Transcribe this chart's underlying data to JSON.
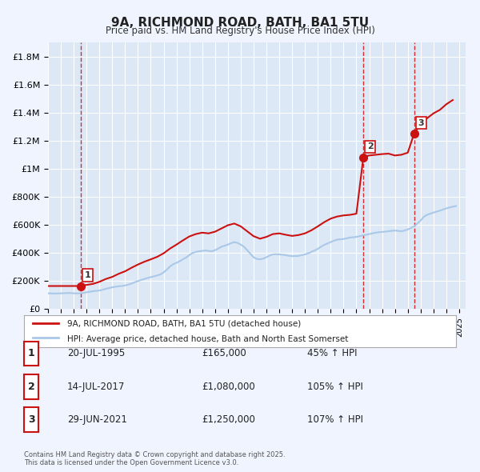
{
  "title": "9A, RICHMOND ROAD, BATH, BA1 5TU",
  "subtitle": "Price paid vs. HM Land Registry's House Price Index (HPI)",
  "bg_color": "#f0f4ff",
  "plot_bg_color": "#dce8f5",
  "grid_color": "#ffffff",
  "sale_color": "#cc1111",
  "hpi_color": "#aac8e8",
  "ylim": [
    0,
    1900000
  ],
  "yticks": [
    0,
    200000,
    400000,
    600000,
    800000,
    1000000,
    1200000,
    1400000,
    1600000,
    1800000
  ],
  "ytick_labels": [
    "£0",
    "£200K",
    "£400K",
    "£600K",
    "£800K",
    "£1M",
    "£1.2M",
    "£1.4M",
    "£1.6M",
    "£1.8M"
  ],
  "xlim_start": 1993.0,
  "xlim_end": 2025.5,
  "sale_dates": [
    1995.55,
    2017.54,
    2021.49
  ],
  "sale_prices": [
    165000,
    1080000,
    1250000
  ],
  "sale_labels": [
    "1",
    "2",
    "3"
  ],
  "vline_dates": [
    1995.55,
    2017.54,
    2021.49
  ],
  "annotations": [
    {
      "label": "1",
      "date": "20-JUL-1995",
      "price": "£165,000",
      "pct": "45% ↑ HPI"
    },
    {
      "label": "2",
      "date": "14-JUL-2017",
      "price": "£1,080,000",
      "pct": "105% ↑ HPI"
    },
    {
      "label": "3",
      "date": "29-JUN-2021",
      "price": "£1,250,000",
      "pct": "107% ↑ HPI"
    }
  ],
  "legend_line1": "9A, RICHMOND ROAD, BATH, BA1 5TU (detached house)",
  "legend_line2": "HPI: Average price, detached house, Bath and North East Somerset",
  "footer": "Contains HM Land Registry data © Crown copyright and database right 2025.\nThis data is licensed under the Open Government Licence v3.0.",
  "hpi_series_x": [
    1993.0,
    1993.25,
    1993.5,
    1993.75,
    1994.0,
    1994.25,
    1994.5,
    1994.75,
    1995.0,
    1995.25,
    1995.5,
    1995.75,
    1996.0,
    1996.25,
    1996.5,
    1996.75,
    1997.0,
    1997.25,
    1997.5,
    1997.75,
    1998.0,
    1998.25,
    1998.5,
    1998.75,
    1999.0,
    1999.25,
    1999.5,
    1999.75,
    2000.0,
    2000.25,
    2000.5,
    2000.75,
    2001.0,
    2001.25,
    2001.5,
    2001.75,
    2002.0,
    2002.25,
    2002.5,
    2002.75,
    2003.0,
    2003.25,
    2003.5,
    2003.75,
    2004.0,
    2004.25,
    2004.5,
    2004.75,
    2005.0,
    2005.25,
    2005.5,
    2005.75,
    2006.0,
    2006.25,
    2006.5,
    2006.75,
    2007.0,
    2007.25,
    2007.5,
    2007.75,
    2008.0,
    2008.25,
    2008.5,
    2008.75,
    2009.0,
    2009.25,
    2009.5,
    2009.75,
    2010.0,
    2010.25,
    2010.5,
    2010.75,
    2011.0,
    2011.25,
    2011.5,
    2011.75,
    2012.0,
    2012.25,
    2012.5,
    2012.75,
    2013.0,
    2013.25,
    2013.5,
    2013.75,
    2014.0,
    2014.25,
    2014.5,
    2014.75,
    2015.0,
    2015.25,
    2015.5,
    2015.75,
    2016.0,
    2016.25,
    2016.5,
    2016.75,
    2017.0,
    2017.25,
    2017.5,
    2017.75,
    2018.0,
    2018.25,
    2018.5,
    2018.75,
    2019.0,
    2019.25,
    2019.5,
    2019.75,
    2020.0,
    2020.25,
    2020.5,
    2020.75,
    2021.0,
    2021.25,
    2021.5,
    2021.75,
    2022.0,
    2022.25,
    2022.5,
    2022.75,
    2023.0,
    2023.25,
    2023.5,
    2023.75,
    2024.0,
    2024.25,
    2024.5,
    2024.75
  ],
  "hpi_series_y": [
    113000,
    112000,
    111000,
    112000,
    113000,
    114000,
    115000,
    115000,
    113000,
    112000,
    113000,
    116000,
    120000,
    124000,
    128000,
    130000,
    133000,
    138000,
    145000,
    150000,
    156000,
    160000,
    163000,
    165000,
    169000,
    175000,
    182000,
    192000,
    200000,
    208000,
    215000,
    222000,
    228000,
    234000,
    240000,
    248000,
    262000,
    282000,
    305000,
    320000,
    330000,
    342000,
    355000,
    368000,
    385000,
    400000,
    408000,
    412000,
    415000,
    418000,
    415000,
    412000,
    420000,
    432000,
    445000,
    452000,
    460000,
    470000,
    478000,
    472000,
    460000,
    445000,
    420000,
    395000,
    370000,
    358000,
    355000,
    360000,
    370000,
    382000,
    390000,
    392000,
    390000,
    388000,
    385000,
    380000,
    378000,
    378000,
    380000,
    385000,
    390000,
    398000,
    408000,
    418000,
    430000,
    445000,
    458000,
    468000,
    478000,
    488000,
    495000,
    498000,
    500000,
    505000,
    510000,
    512000,
    515000,
    520000,
    525000,
    530000,
    535000,
    540000,
    545000,
    548000,
    550000,
    552000,
    555000,
    558000,
    560000,
    558000,
    555000,
    560000,
    568000,
    578000,
    592000,
    610000,
    632000,
    658000,
    672000,
    680000,
    688000,
    695000,
    702000,
    710000,
    718000,
    725000,
    730000,
    735000
  ],
  "sale_series_x": [
    1993.0,
    1994.0,
    1995.0,
    1995.25,
    1995.5,
    1996.0,
    1996.5,
    1997.0,
    1997.5,
    1998.0,
    1998.5,
    1999.0,
    1999.5,
    2000.0,
    2000.5,
    2001.0,
    2001.5,
    2002.0,
    2002.5,
    2003.0,
    2003.5,
    2004.0,
    2004.5,
    2005.0,
    2005.5,
    2006.0,
    2006.5,
    2007.0,
    2007.5,
    2008.0,
    2008.5,
    2009.0,
    2009.5,
    2010.0,
    2010.5,
    2011.0,
    2011.5,
    2012.0,
    2012.5,
    2013.0,
    2013.5,
    2014.0,
    2014.5,
    2015.0,
    2015.5,
    2016.0,
    2016.5,
    2017.0,
    2017.54,
    2017.75,
    2018.0,
    2018.5,
    2019.0,
    2019.5,
    2020.0,
    2020.5,
    2021.0,
    2021.49,
    2021.75,
    2022.0,
    2022.5,
    2023.0,
    2023.5,
    2024.0,
    2024.5
  ],
  "sale_series_y": [
    165000,
    165000,
    165000,
    165000,
    165000,
    173000,
    180000,
    195000,
    215000,
    230000,
    252000,
    270000,
    295000,
    318000,
    338000,
    355000,
    373000,
    398000,
    432000,
    460000,
    490000,
    518000,
    535000,
    545000,
    540000,
    552000,
    575000,
    598000,
    610000,
    590000,
    555000,
    520000,
    502000,
    515000,
    535000,
    540000,
    530000,
    522000,
    528000,
    540000,
    562000,
    590000,
    620000,
    645000,
    660000,
    668000,
    672000,
    680000,
    1080000,
    1090000,
    1095000,
    1100000,
    1105000,
    1108000,
    1095000,
    1100000,
    1115000,
    1250000,
    1285000,
    1320000,
    1360000,
    1395000,
    1420000,
    1460000,
    1490000
  ]
}
